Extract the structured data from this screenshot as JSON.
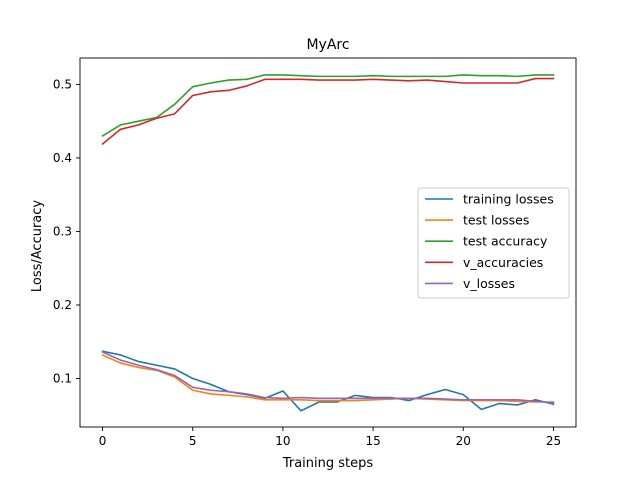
{
  "chart_data": {
    "type": "line",
    "title": "MyArc",
    "xlabel": "Training steps",
    "ylabel": "Loss/Accuracy",
    "xlim": [
      -1.25,
      26.25
    ],
    "ylim": [
      0.034,
      0.536
    ],
    "xticks": [
      0,
      5,
      10,
      15,
      20,
      25
    ],
    "yticks": [
      0.1,
      0.2,
      0.3,
      0.4,
      0.5
    ],
    "grid": false,
    "legend_position": "center-right",
    "x": [
      0,
      1,
      2,
      3,
      4,
      5,
      6,
      7,
      8,
      9,
      10,
      11,
      12,
      13,
      14,
      15,
      16,
      17,
      18,
      19,
      20,
      21,
      22,
      23,
      24,
      25
    ],
    "series": [
      {
        "name": "training losses",
        "color": "#1f77b4",
        "values": [
          0.137,
          0.132,
          0.123,
          0.118,
          0.113,
          0.1,
          0.092,
          0.082,
          0.078,
          0.073,
          0.083,
          0.056,
          0.068,
          0.068,
          0.077,
          0.074,
          0.074,
          0.07,
          0.078,
          0.085,
          0.078,
          0.058,
          0.066,
          0.064,
          0.071,
          0.065
        ]
      },
      {
        "name": "test losses",
        "color": "#ff7f0e",
        "values": [
          0.132,
          0.121,
          0.115,
          0.111,
          0.102,
          0.084,
          0.079,
          0.077,
          0.075,
          0.071,
          0.071,
          0.071,
          0.07,
          0.07,
          0.07,
          0.071,
          0.072,
          0.073,
          0.072,
          0.071,
          0.07,
          0.07,
          0.07,
          0.069,
          0.068,
          0.068
        ]
      },
      {
        "name": "test accuracy",
        "color": "#2ca02c",
        "values": [
          0.43,
          0.445,
          0.45,
          0.455,
          0.473,
          0.497,
          0.502,
          0.506,
          0.507,
          0.513,
          0.513,
          0.512,
          0.511,
          0.511,
          0.511,
          0.512,
          0.511,
          0.511,
          0.511,
          0.511,
          0.513,
          0.512,
          0.512,
          0.511,
          0.513,
          0.513
        ]
      },
      {
        "name": "v_accuracies",
        "color": "#d62728",
        "values": [
          0.419,
          0.439,
          0.445,
          0.454,
          0.46,
          0.485,
          0.49,
          0.492,
          0.498,
          0.507,
          0.507,
          0.507,
          0.506,
          0.506,
          0.506,
          0.507,
          0.506,
          0.505,
          0.506,
          0.504,
          0.502,
          0.502,
          0.502,
          0.502,
          0.508,
          0.508
        ]
      },
      {
        "name": "v_losses",
        "color": "#9467bd",
        "values": [
          0.136,
          0.125,
          0.118,
          0.112,
          0.104,
          0.088,
          0.084,
          0.082,
          0.079,
          0.074,
          0.073,
          0.074,
          0.073,
          0.073,
          0.073,
          0.073,
          0.073,
          0.073,
          0.073,
          0.072,
          0.071,
          0.071,
          0.071,
          0.071,
          0.069,
          0.067
        ]
      }
    ]
  }
}
